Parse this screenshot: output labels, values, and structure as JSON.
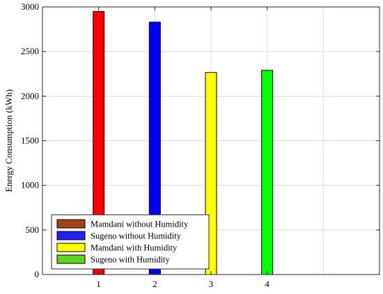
{
  "chart_data": {
    "type": "bar",
    "x": [
      1,
      2,
      3,
      4
    ],
    "categories": [
      "1",
      "2",
      "3",
      "4"
    ],
    "values": [
      2950,
      2830,
      2265,
      2290
    ],
    "bar_colors": [
      "#ff0000",
      "#0000ff",
      "#ffff00",
      "#00ff00"
    ],
    "title": "",
    "xlabel": "",
    "ylabel": "Energy Consumption (kWh)",
    "xlim": [
      0,
      6
    ],
    "ylim": [
      0,
      3000
    ],
    "yticks": [
      0,
      500,
      1000,
      1500,
      2000,
      2500,
      3000
    ],
    "xticks": [
      1,
      2,
      3,
      4
    ],
    "grid": true,
    "legend": {
      "placement": "bottom-left",
      "entries": [
        {
          "label": "Mamdani without Humidity",
          "color": "#a0421c"
        },
        {
          "label": "Sugeno without Humidity",
          "color": "#2222ee"
        },
        {
          "label": "Mamdani with Humidity",
          "color": "#ffff00"
        },
        {
          "label": "Sugeno with Humidity",
          "color": "#5fd21f"
        }
      ]
    }
  }
}
